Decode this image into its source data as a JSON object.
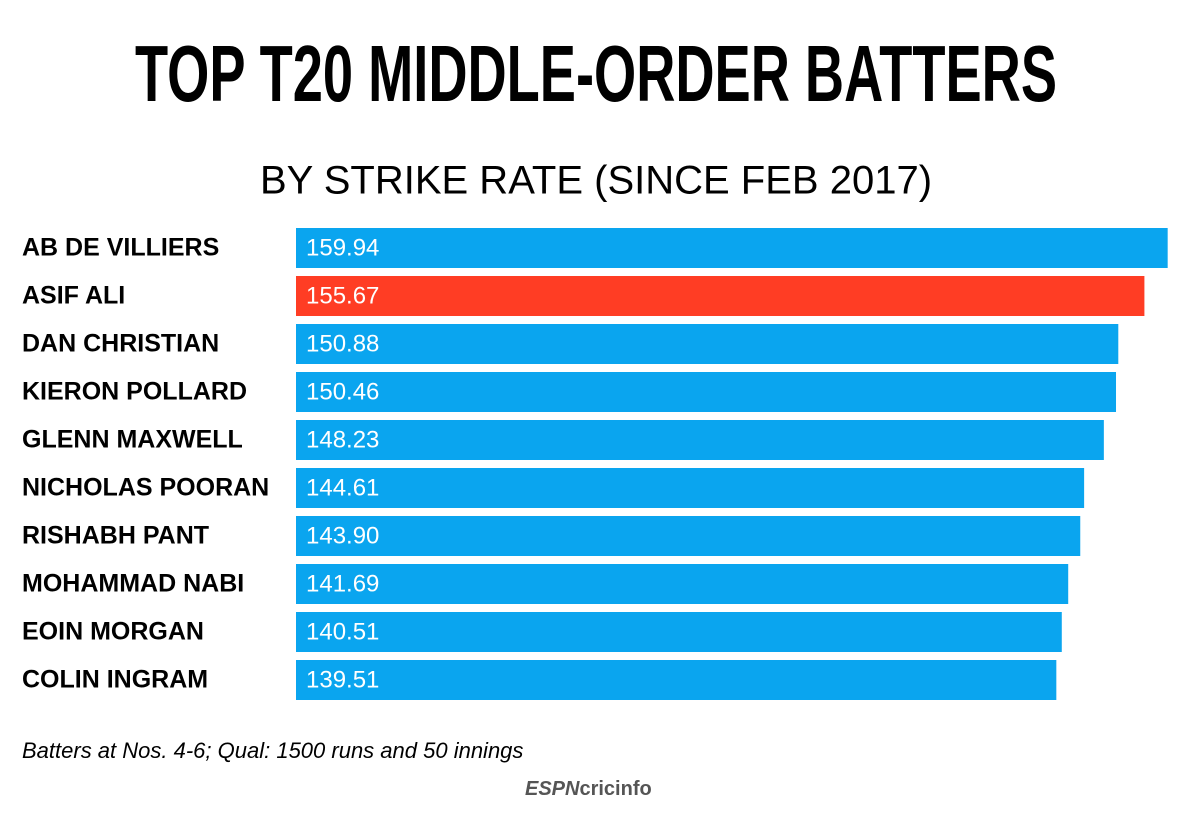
{
  "chart_data": {
    "type": "bar",
    "orientation": "horizontal",
    "title": "TOP T20 MIDDLE-ORDER BATTERS",
    "subtitle": "BY STRIKE RATE (SINCE FEB 2017)",
    "categories": [
      "AB DE VILLIERS",
      "ASIF ALI",
      "DAN CHRISTIAN",
      "KIERON POLLARD",
      "GLENN MAXWELL",
      "NICHOLAS POORAN",
      "RISHABH PANT",
      "MOHAMMAD NABI",
      "EOIN MORGAN",
      "COLIN INGRAM"
    ],
    "values": [
      159.94,
      155.67,
      150.88,
      150.46,
      148.23,
      144.61,
      143.9,
      141.69,
      140.51,
      139.51
    ],
    "value_labels": [
      "159.94",
      "155.67",
      "150.88",
      "150.46",
      "148.23",
      "144.61",
      "143.90",
      "141.69",
      "140.51",
      "139.51"
    ],
    "colors": [
      "#0aa5ef",
      "#ff3d24",
      "#0aa5ef",
      "#0aa5ef",
      "#0aa5ef",
      "#0aa5ef",
      "#0aa5ef",
      "#0aa5ef",
      "#0aa5ef",
      "#0aa5ef"
    ],
    "xlim": [
      0,
      160
    ],
    "footnote": "Batters at Nos. 4-6; Qual: 1500 runs and 50 innings",
    "logo": {
      "espn": "ESPN",
      "cricinfo": "cricinfo"
    }
  }
}
